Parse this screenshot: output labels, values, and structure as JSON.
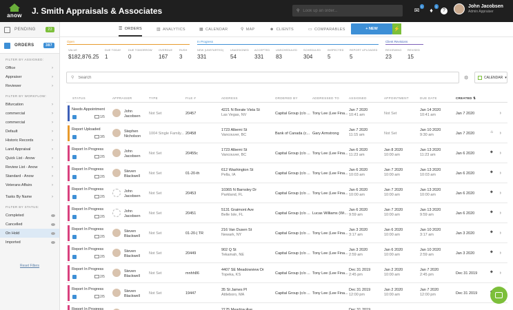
{
  "app": {
    "logo_text": "anow",
    "company": "J. Smith Appraisals & Associates",
    "search_placeholder": "Look up an order...",
    "notif_badge_1": "1",
    "notif_badge_2": "1",
    "user_name": "John Jacobsen",
    "user_role": "Admin Appraiser"
  },
  "sidebar": {
    "tabs": [
      {
        "label": "PENDING",
        "count": "22",
        "count_color": "#7cbf3a"
      },
      {
        "label": "ORDERS",
        "count": "387",
        "count_color": "#3d8fd6"
      }
    ],
    "assigned_heading": "Filter by assigned:",
    "assigned": [
      "Office",
      "Appraiser",
      "Reviewer"
    ],
    "workflow_heading": "Filter by workflow:",
    "workflow": [
      "Bifurcation",
      "commercial",
      "commercial",
      "Default",
      "Historic Records",
      "Land Appraisal",
      "Quick List - Anow",
      "Review List - Anow",
      "Standard - Anow",
      "Veterans Affairs"
    ],
    "tasks": "Tasks By Name",
    "status_heading": "Filter by status:",
    "status": [
      "Completed",
      "Cancelled",
      "On Hold",
      "Imported"
    ],
    "reset": "Reset Filters"
  },
  "nav": {
    "tabs": [
      "ORDERS",
      "ANALYTICS",
      "CALENDAR",
      "MAP",
      "CLIENTS",
      "COMPARABLES"
    ],
    "new_button": "+ NEW"
  },
  "stats": {
    "sections": [
      "Open",
      "In Progress",
      "Client Revisions"
    ],
    "items": [
      {
        "label": "Value",
        "value": "$182,876.25"
      },
      {
        "label": "Due Today",
        "value": "1"
      },
      {
        "label": "Due Tomorrow",
        "value": "0"
      },
      {
        "label": "Overdue",
        "value": "167"
      },
      {
        "label": "Rush",
        "value": "3"
      },
      {
        "label": "New (Unstarted)",
        "value": "331"
      },
      {
        "label": "Unassigned",
        "value": "54"
      },
      {
        "label": "Accepted",
        "value": "331"
      },
      {
        "label": "Unscheduled",
        "value": "83"
      },
      {
        "label": "Scheduled",
        "value": "304"
      },
      {
        "label": "Inspected",
        "value": "5"
      },
      {
        "label": "Report Uploaded",
        "value": "5"
      },
      {
        "label": "Reviewing",
        "value": "23"
      },
      {
        "label": "Revised",
        "value": "15"
      }
    ]
  },
  "toolbar": {
    "search_placeholder": "Search",
    "calendar": "CALENDAR"
  },
  "table": {
    "headers": [
      "Status",
      "Appraiser",
      "Type",
      "File #",
      "Address",
      "Ordered By",
      "Addressed To",
      "Assigned",
      "Appointment",
      "Due Date",
      "Created"
    ],
    "rows": [
      {
        "status": "Needs Appointment",
        "stripe": "#3d5fb8",
        "frac": "1/5",
        "appraiser": [
          "John",
          "Jacobsen"
        ],
        "av": true,
        "type": "Not Set",
        "file": "20457",
        "addr1": "4221 N Borate Vista St",
        "addr2": "Las Vegas, NV",
        "ordered": "Capital Group (c/o ...",
        "addressed": "Tony Lee (Lee Fina...",
        "assigned1": "Jan 7 2020",
        "assigned2": "10:41 am",
        "appt1": "Not Set",
        "appt2": "",
        "due": "Jan 14 2020",
        "due2": "10:41 am",
        "created": "Jan 7 2020",
        "icon": ""
      },
      {
        "status": "Report Uploaded",
        "stripe": "#e89a2c",
        "frac": "3/5",
        "appraiser": [
          "Stephen",
          "Nicholson"
        ],
        "av": true,
        "type": "1004 Single Family...",
        "file": "20458",
        "addr1": "1723 Alberni St",
        "addr2": "Vancouver, BC",
        "ordered": "Bank of Canada (c...",
        "addressed": "Gary Armstrong",
        "assigned1": "Jan 7 2020",
        "assigned2": "11:15 am",
        "appt1": "Not Set",
        "appt2": "",
        "due": "Jan 10 2020",
        "due2": "9:30 am",
        "created": "Jan 7 2020",
        "icon": "⌂"
      },
      {
        "status": "Report In Progress",
        "stripe": "#d9417e",
        "frac": "2/5",
        "appraiser": [
          "John",
          "Jacobsen"
        ],
        "av": true,
        "type": "Not Set",
        "file": "20455c",
        "addr1": "1723 Alberni St",
        "addr2": "Vancouver, BC",
        "ordered": "Capital Group (c/o ...",
        "addressed": "Tony Lee (Lee Fina...",
        "assigned1": "Jan 6 2020",
        "assigned2": "11:23 am",
        "appt1": "Jan 8 2020",
        "appt2": "10:00 am",
        "due": "Jan 13 2020",
        "due2": "11:23 am",
        "created": "Jan 6 2020",
        "icon": "⬥"
      },
      {
        "status": "Report In Progress",
        "stripe": "#d9417e",
        "frac": "2/5",
        "appraiser": [
          "Steven",
          "Blackwell"
        ],
        "av": true,
        "type": "Not Set",
        "file": "01-20-th",
        "addr1": "612 Washington St",
        "addr2": "Pella, IA",
        "ordered": "Capital Group (c/o ...",
        "addressed": "Tony Lee (Lee Fina...",
        "assigned1": "Jan 6 2020",
        "assigned2": "10:03 am",
        "appt1": "Jan 7 2020",
        "appt2": "10:00 am",
        "due": "Jan 13 2020",
        "due2": "10:03 am",
        "created": "Jan 6 2020",
        "icon": "⬥"
      },
      {
        "status": "Report In Progress",
        "stripe": "#d9417e",
        "frac": "2/5",
        "appraiser": [
          "John",
          "Jacobsen"
        ],
        "av": false,
        "type": "Not Set",
        "file": "20453",
        "addr1": "10365 N Barnsley Dr",
        "addr2": "Parkland, FL",
        "ordered": "Capital Group (c/o ...",
        "addressed": "Tony Lee (Lee Fina...",
        "assigned1": "Jan 6 2020",
        "assigned2": "10:00 am",
        "appt1": "Jan 7 2020",
        "appt2": "10:00 am",
        "due": "Jan 13 2020",
        "due2": "10:00 am",
        "created": "Jan 6 2020",
        "icon": "⬥"
      },
      {
        "status": "Report In Progress",
        "stripe": "#d9417e",
        "frac": "2/5",
        "appraiser": [
          "John",
          "Jacobsen"
        ],
        "av": false,
        "type": "Not Set",
        "file": "20451",
        "addr1": "5131 Graimont Ave",
        "addr2": "Belle Isle, FL",
        "ordered": "Capital Group (c/o ...",
        "addressed": "Lucas Williams (Wi...",
        "assigned1": "Jan 6 2020",
        "assigned2": "9:59 am",
        "appt1": "Jan 7 2020",
        "appt2": "10:00 am",
        "due": "Jan 13 2020",
        "due2": "9:59 am",
        "created": "Jan 6 2020",
        "icon": "⬥"
      },
      {
        "status": "Report In Progress",
        "stripe": "#d9417e",
        "frac": "2/5",
        "appraiser": [
          "Steven",
          "Blackwell"
        ],
        "av": true,
        "type": "Not Set",
        "file": "01-20-| TR",
        "addr1": "216 Van Dusen St",
        "addr2": "Newark, NY",
        "ordered": "Capital Group (c/o ...",
        "addressed": "Tony Lee (Lee Fina...",
        "assigned1": "Jan 3 2020",
        "assigned2": "3:17 am",
        "appt1": "Jan 6 2020",
        "appt2": "10:00 am",
        "due": "Jan 10 2020",
        "due2": "3:17 am",
        "created": "Jan 3 2020",
        "icon": "⬥"
      },
      {
        "status": "Report In Progress",
        "stripe": "#d9417e",
        "frac": "2/5",
        "appraiser": [
          "Steven",
          "Blackwell"
        ],
        "av": true,
        "type": "Not Set",
        "file": "20449",
        "addr1": "902 Q St",
        "addr2": "Tekamah, NE",
        "ordered": "Capital Group (c/o ...",
        "addressed": "Tony Lee (Lee Fina...",
        "assigned1": "Jan 3 2020",
        "assigned2": "2:59 am",
        "appt1": "Jan 6 2020",
        "appt2": "10:00 am",
        "due": "Jan 10 2020",
        "due2": "2:59 am",
        "created": "Jan 3 2020",
        "icon": "⬥"
      },
      {
        "status": "Report In Progress",
        "stripe": "#d9417e",
        "frac": "2/5",
        "appraiser": [
          "Steven",
          "Blackwell"
        ],
        "av": true,
        "type": "Not Set",
        "file": "mnhh86",
        "addr1": "4407 SE Meadowview Dr",
        "addr2": "Topeka, KS",
        "ordered": "Capital Group (c/o ...",
        "addressed": "Tony Lee (Lee Fina...",
        "assigned1": "Dec 31 2019",
        "assigned2": "2:45 pm",
        "appt1": "Jan 2 2020",
        "appt2": "10:00 am",
        "due": "Jan 7 2020",
        "due2": "2:45 pm",
        "created": "Dec 31 2019",
        "icon": "⬥"
      },
      {
        "status": "Report In Progress",
        "stripe": "#d9417e",
        "frac": "2/5",
        "appraiser": [
          "Steven",
          "Blackwell"
        ],
        "av": true,
        "type": "Not Set",
        "file": "19447",
        "addr1": "35 St James Pl",
        "addr2": "Attleboro, MA",
        "ordered": "Capital Group (c/o ...",
        "addressed": "Tony Lee (Lee Fina...",
        "assigned1": "Dec 31 2019",
        "assigned2": "12:00 pm",
        "appt1": "Jan 2 2020",
        "appt2": "10:00 am",
        "due": "Jan 7 2020",
        "due2": "12:00 pm",
        "created": "Dec 31 2019",
        "icon": "⬥"
      },
      {
        "status": "Report In Progress",
        "stripe": "#d9417e",
        "frac": "",
        "appraiser": [
          "",
          ""
        ],
        "av": true,
        "type": "",
        "file": "",
        "addr1": "2125 Meadow Ave",
        "addr2": "",
        "ordered": "",
        "addressed": "",
        "assigned1": "Dec 31 2019",
        "assigned2": "",
        "appt1": "",
        "appt2": "",
        "due": "",
        "due2": "",
        "created": "",
        "icon": ""
      }
    ]
  }
}
